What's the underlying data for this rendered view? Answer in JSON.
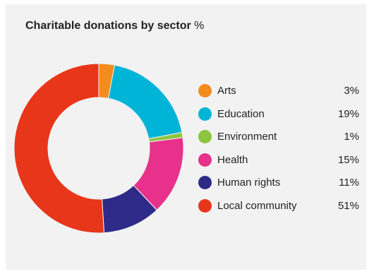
{
  "chart_data": {
    "type": "pie",
    "title": "Charitable donations by sector",
    "unit": "%",
    "hole": "donut",
    "legend_position": "right",
    "slices": [
      {
        "label": "Arts",
        "value": 3,
        "display": "3%",
        "color": "#f28c1c"
      },
      {
        "label": "Education",
        "value": 19,
        "display": "19%",
        "color": "#00b4d8"
      },
      {
        "label": "Environment",
        "value": 1,
        "display": "1%",
        "color": "#8cc63f"
      },
      {
        "label": "Health",
        "value": 15,
        "display": "15%",
        "color": "#e8318a"
      },
      {
        "label": "Human rights",
        "value": 11,
        "display": "11%",
        "color": "#2e2a87"
      },
      {
        "label": "Local community",
        "value": 51,
        "display": "51%",
        "color": "#e8361a"
      }
    ]
  }
}
